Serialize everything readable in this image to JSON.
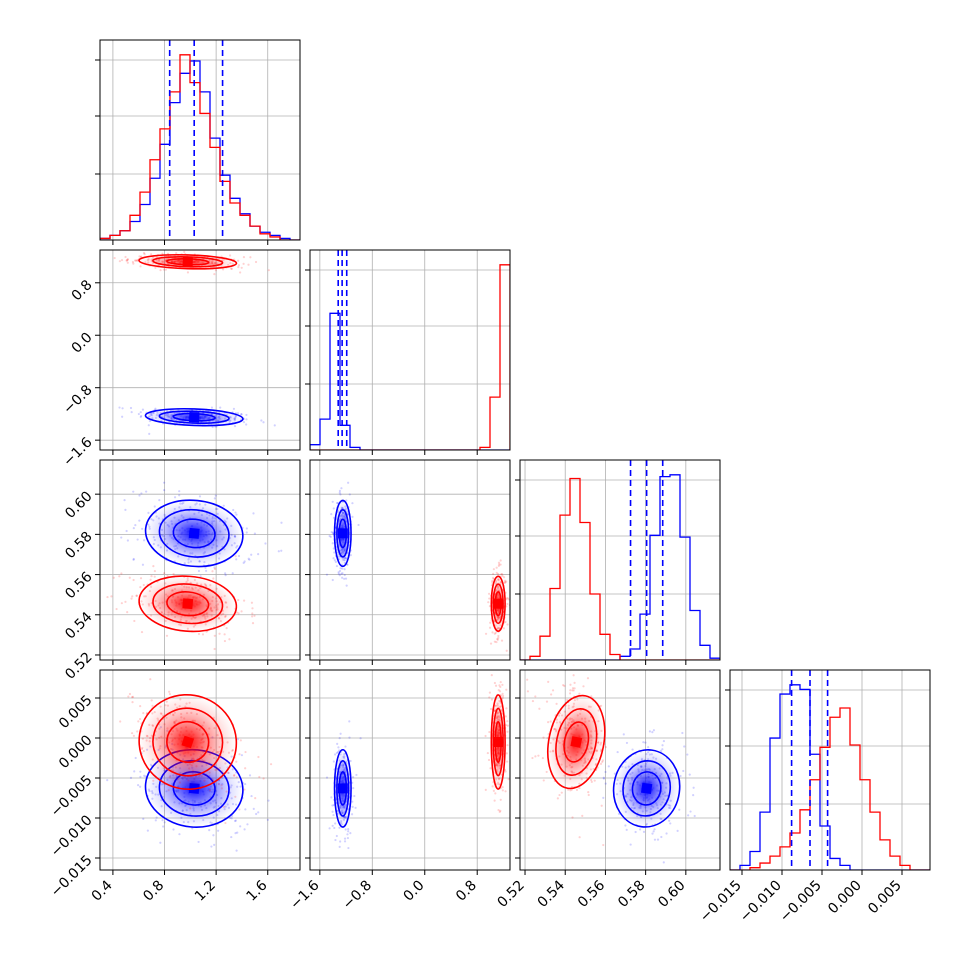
{
  "chart_data": {
    "type": "corner",
    "grid": true,
    "parameters": [
      {
        "range": [
          0.3,
          1.85
        ],
        "ticks": [
          "0.4",
          "0.8",
          "1.2",
          "1.6"
        ]
      },
      {
        "range": [
          -1.75,
          1.3
        ],
        "ticks": [
          "-1.6",
          "-0.8",
          "0.0",
          "0.8"
        ]
      },
      {
        "range": [
          0.5175,
          0.617
        ],
        "ticks": [
          "0.52",
          "0.54",
          "0.56",
          "0.58",
          "0.60"
        ]
      },
      {
        "range": [
          -0.0165,
          0.0085
        ],
        "ticks": [
          "-0.015",
          "-0.010",
          "-0.005",
          "0.000",
          "0.005"
        ]
      }
    ],
    "series": [
      {
        "color": "#0000ff",
        "means": [
          1.03,
          -1.25,
          0.5805,
          -0.0063
        ],
        "sds": [
          0.18,
          0.06,
          0.0078,
          0.0023
        ]
      },
      {
        "color": "#ff0000",
        "means": [
          0.98,
          1.12,
          0.5455,
          -0.0005
        ],
        "sds": [
          0.18,
          0.05,
          0.0065,
          0.0028
        ]
      }
    ],
    "quantile_lines": [
      [
        0.84,
        1.03,
        1.25
      ],
      [
        -1.32,
        -1.26,
        -1.19
      ],
      [
        0.5725,
        0.5805,
        0.5885
      ],
      [
        -0.0088,
        -0.0065,
        -0.0043
      ]
    ],
    "histograms": [
      {
        "bins": [
          0.3,
          1.85
        ],
        "blue": [
          1,
          3,
          6,
          12,
          23,
          40,
          62,
          89,
          108,
          116,
          96,
          66,
          42,
          27,
          17,
          9,
          5,
          3,
          1,
          0
        ],
        "red": [
          1,
          3,
          6,
          16,
          31,
          52,
          72,
          96,
          120,
          102,
          82,
          60,
          38,
          24,
          16,
          9,
          4,
          2,
          0,
          0
        ]
      },
      {
        "bins": [
          -1.75,
          1.3
        ],
        "blue": [
          6,
          35,
          155,
          28,
          3,
          0,
          0,
          0,
          0,
          0,
          0,
          0,
          0,
          0,
          0,
          0,
          0,
          0,
          0,
          0
        ],
        "red": [
          0,
          0,
          0,
          0,
          0,
          0,
          0,
          0,
          0,
          0,
          0,
          0,
          0,
          0,
          0,
          0,
          0,
          3,
          60,
          210
        ]
      },
      {
        "bins": [
          0.5175,
          0.617
        ],
        "blue": [
          0,
          0,
          0,
          0,
          0,
          0,
          0,
          0,
          0,
          0,
          2,
          6,
          25,
          68,
          100,
          101,
          67,
          27,
          8,
          1
        ],
        "red": [
          0,
          2,
          13,
          39,
          79,
          99,
          75,
          36,
          14,
          3,
          0,
          0,
          0,
          0,
          0,
          0,
          0,
          0,
          0,
          0
        ]
      },
      {
        "bins": [
          -0.0165,
          0.0085
        ],
        "blue": [
          0,
          2,
          8,
          25,
          57,
          76,
          80,
          78,
          50,
          19,
          5,
          2,
          0,
          0,
          0,
          0,
          0,
          0,
          0,
          0
        ],
        "red": [
          0,
          0,
          1,
          3,
          6,
          10,
          16,
          26,
          39,
          53,
          66,
          70,
          54,
          39,
          25,
          13,
          6,
          2,
          0,
          0
        ]
      }
    ]
  }
}
